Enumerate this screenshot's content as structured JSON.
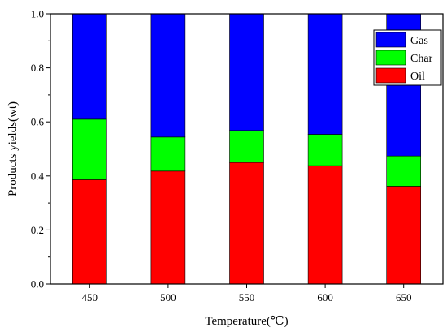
{
  "chart_data": {
    "type": "bar",
    "stacked": true,
    "categories": [
      "450",
      "500",
      "550",
      "600",
      "650"
    ],
    "series": [
      {
        "name": "Oil",
        "color": "#ff0000",
        "values": [
          0.386,
          0.418,
          0.45,
          0.438,
          0.362
        ]
      },
      {
        "name": "Char",
        "color": "#00ff00",
        "values": [
          0.224,
          0.126,
          0.118,
          0.116,
          0.112
        ]
      },
      {
        "name": "Gas",
        "color": "#0000ff",
        "values": [
          0.39,
          0.456,
          0.432,
          0.446,
          0.526
        ]
      }
    ],
    "legend_order": [
      "Gas",
      "Char",
      "Oil"
    ],
    "legend_position": "top-right",
    "xlabel": "Temperature(℃)",
    "ylabel": "Products yields(wt)",
    "ylim": [
      0,
      1.0
    ],
    "yticks": [
      "0.0",
      "0.2",
      "0.4",
      "0.6",
      "0.8",
      "1.0"
    ],
    "grid": false
  }
}
